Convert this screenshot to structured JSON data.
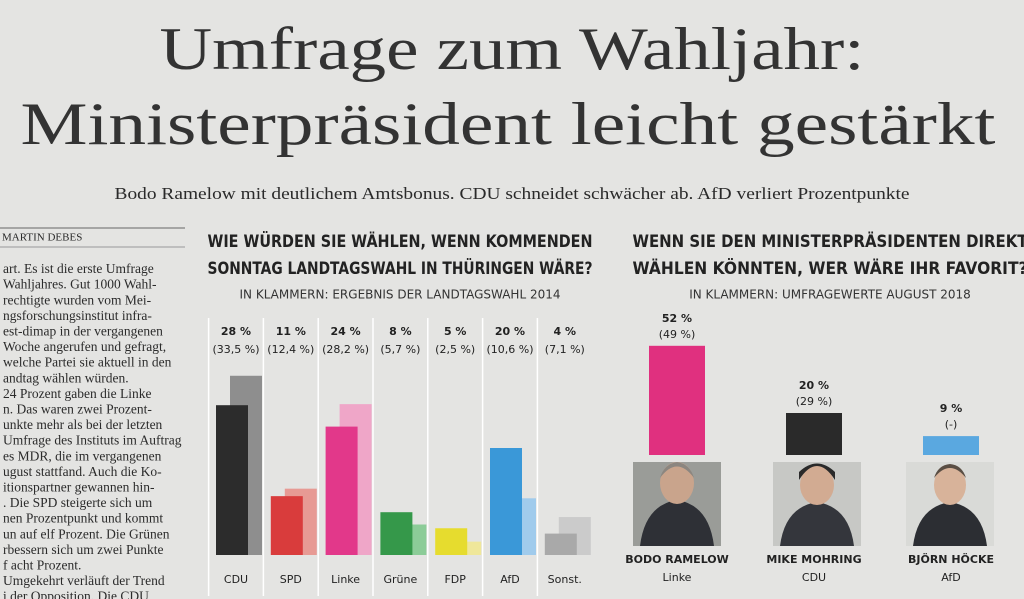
{
  "header": {
    "title_lines": [
      "Umfrage zum Wahljahr:",
      "Ministerpräsident leicht gestärkt"
    ],
    "subtitle": "Bodo Ramelow mit deutlichem Amtsbonus. CDU schneidet schwächer ab. AfD verliert Prozentpunkte",
    "byline": "MARTIN DEBES"
  },
  "article": {
    "lines": [
      "art. Es ist die erste Umfrage",
      "Wahljahres. Gut 1000 Wahl-",
      "rechtigte wurden vom Mei-",
      "ngsforschungsinstitut infra-",
      "est-dimap in der vergangenen",
      "Woche angerufen und gefragt,",
      "welche Partei sie aktuell in den",
      "andtag wählen würden.",
      "24 Prozent gaben die Linke",
      "n. Das waren zwei Prozent-",
      "unkte mehr als bei der letzten",
      "Umfrage des Instituts im Auftrag",
      "es MDR, die im vergangenen",
      "ugust stattfand. Auch die Ko-",
      "itionspartner gewannen hin-",
      ". Die SPD steigerte sich um",
      "nen Prozentpunkt und kommt",
      "un auf elf Prozent. Die Grünen",
      "rbessern sich um zwei Punkte",
      "f acht Prozent.",
      "Umgekehrt verläuft der Trend",
      "i der Opposition. Die CDU"
    ]
  },
  "chart_data": [
    {
      "type": "bar",
      "title_lines": [
        "WIE WÜRDEN SIE WÄHLEN, WENN KOMMENDEN",
        "SONNTAG LANDTAGSWAHL IN THÜRINGEN WÄRE?"
      ],
      "subtitle": "IN KLAMMERN: ERGEBNIS DER LANDTAGSWAHL 2014",
      "categories": [
        "CDU",
        "SPD",
        "Linke",
        "Grüne",
        "FDP",
        "AfD",
        "Sonst."
      ],
      "series": [
        {
          "colors": [
            "#2c2c2c",
            "#d93c3c",
            "#e2388a",
            "#35984a",
            "#e6dc2e",
            "#3a98d8",
            "#a9a9a9"
          ],
          "values": [
            28,
            11,
            24,
            8,
            5,
            20,
            4
          ],
          "value_labels": [
            "28 %",
            "11 %",
            "24 %",
            "8 %",
            "5 %",
            "20 %",
            "4 %"
          ]
        },
        {
          "colors": [
            "#8e8e8e",
            "#e79a94",
            "#efa6c8",
            "#8ccc98",
            "#efe79a",
            "#a0cbec",
            "#cbcbcb"
          ],
          "values": [
            33.5,
            12.4,
            28.2,
            5.7,
            2.5,
            10.6,
            7.1
          ],
          "value_labels": [
            "(33,5 %)",
            "(12,4 %)",
            "(28,2 %)",
            "(5,7 %)",
            "(2,5 %)",
            "(10,6 %)",
            "(7,1 %)"
          ]
        }
      ]
    },
    {
      "type": "bar",
      "title_lines": [
        "WENN SIE DEN MINISTERPRÄSIDENTEN DIREKT",
        "WÄHLEN KÖNNTEN, WER WÄRE IHR FAVORIT?"
      ],
      "subtitle": "IN KLAMMERN: UMFRAGEWERTE AUGUST 2018",
      "categories": [
        "BODO RAMELOW",
        "MIKE MOHRING",
        "BJÖRN HÖCKE"
      ],
      "parties": [
        "Linke",
        "CDU",
        "AfD"
      ],
      "series": [
        {
          "colors": [
            "#e0307f",
            "#2a2a2a",
            "#5aa8e0"
          ],
          "values": [
            52,
            20,
            9
          ],
          "value_labels": [
            "52 %",
            "20 %",
            "9 %"
          ]
        },
        {
          "values": [
            49,
            29,
            null
          ],
          "value_labels": [
            "(49 %)",
            "(29 %)",
            "(-)"
          ]
        }
      ]
    }
  ]
}
